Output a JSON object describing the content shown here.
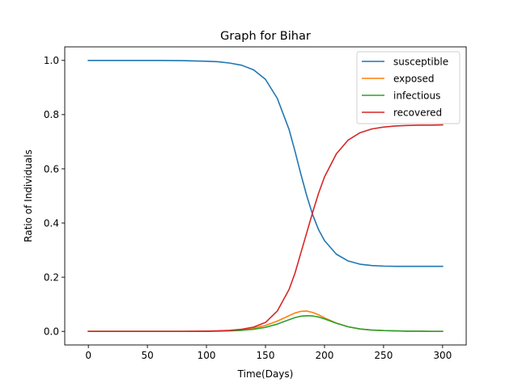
{
  "chart_data": {
    "type": "line",
    "title": "Graph for Bihar",
    "xlabel": "Time(Days)",
    "ylabel": "Ratio of Individuals",
    "xlim": [
      -20,
      320
    ],
    "ylim": [
      -0.05,
      1.05
    ],
    "x_ticks": [
      0,
      50,
      100,
      150,
      200,
      250,
      300
    ],
    "y_ticks": [
      0.0,
      0.2,
      0.4,
      0.6,
      0.8,
      1.0
    ],
    "x_tick_labels": [
      "0",
      "50",
      "100",
      "150",
      "200",
      "250",
      "300"
    ],
    "y_tick_labels": [
      "0.0",
      "0.2",
      "0.4",
      "0.6",
      "0.8",
      "1.0"
    ],
    "grid": false,
    "legend_position": "top-right",
    "x": [
      0,
      20,
      40,
      60,
      80,
      100,
      110,
      120,
      130,
      140,
      150,
      160,
      170,
      175,
      180,
      185,
      190,
      195,
      200,
      210,
      220,
      230,
      240,
      250,
      260,
      270,
      280,
      290,
      300
    ],
    "series": [
      {
        "name": "susceptible",
        "color": "#1f77b4",
        "values": [
          1.0,
          1.0,
          1.0,
          1.0,
          0.999,
          0.997,
          0.995,
          0.99,
          0.982,
          0.965,
          0.93,
          0.86,
          0.745,
          0.665,
          0.58,
          0.5,
          0.43,
          0.375,
          0.335,
          0.285,
          0.26,
          0.248,
          0.243,
          0.241,
          0.24,
          0.24,
          0.24,
          0.24,
          0.24
        ]
      },
      {
        "name": "exposed",
        "color": "#ff7f0e",
        "values": [
          0.0,
          0.0,
          0.0,
          0.0,
          0.0,
          0.001,
          0.002,
          0.003,
          0.006,
          0.012,
          0.022,
          0.038,
          0.058,
          0.068,
          0.074,
          0.075,
          0.07,
          0.061,
          0.05,
          0.031,
          0.017,
          0.009,
          0.005,
          0.003,
          0.002,
          0.001,
          0.001,
          0.0,
          0.0
        ]
      },
      {
        "name": "infectious",
        "color": "#2ca02c",
        "values": [
          0.0,
          0.0,
          0.0,
          0.0,
          0.0,
          0.0,
          0.001,
          0.002,
          0.004,
          0.008,
          0.015,
          0.027,
          0.043,
          0.051,
          0.056,
          0.058,
          0.057,
          0.053,
          0.046,
          0.03,
          0.017,
          0.009,
          0.005,
          0.003,
          0.002,
          0.001,
          0.001,
          0.0,
          0.0
        ]
      },
      {
        "name": "recovered",
        "color": "#d62728",
        "values": [
          0.0,
          0.0,
          0.0,
          0.0,
          0.0,
          0.001,
          0.002,
          0.004,
          0.008,
          0.016,
          0.033,
          0.075,
          0.155,
          0.215,
          0.29,
          0.365,
          0.44,
          0.51,
          0.57,
          0.655,
          0.706,
          0.733,
          0.747,
          0.754,
          0.758,
          0.76,
          0.761,
          0.761,
          0.762
        ]
      }
    ]
  }
}
